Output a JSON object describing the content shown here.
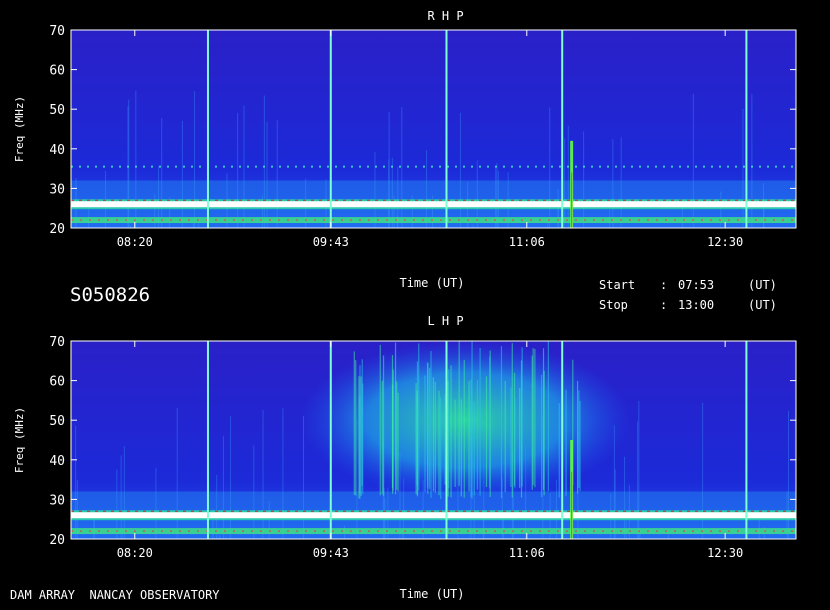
{
  "station_id": "S050826",
  "footer_label": "DAM ARRAY  NANCAY OBSERVATORY",
  "time_info": {
    "start_label": "Start",
    "stop_label": "Stop",
    "sep": ":",
    "start_time": "07:53",
    "stop_time": "13:00",
    "unit": "(UT)"
  },
  "colors": {
    "background": "#000000",
    "plot_bg": "#1a14c8",
    "time_marker": "#7fffd4"
  },
  "chart_data": [
    {
      "type": "heatmap",
      "title": "R H P",
      "xlabel": "Time (UT)",
      "ylabel": "Freq (MHz)",
      "x_range": [
        "07:53",
        "13:00"
      ],
      "ylim": [
        20,
        70
      ],
      "x_ticks": [
        "08:20",
        "09:43",
        "11:06",
        "12:30"
      ],
      "y_ticks": [
        20,
        30,
        40,
        50,
        60,
        70
      ],
      "time_markers": [
        "08:51",
        "09:43",
        "10:32",
        "11:21",
        "12:39"
      ],
      "features": [
        {
          "type": "band",
          "freq": 26,
          "intensity": "high"
        },
        {
          "type": "band",
          "freq": 22,
          "intensity": "medium"
        },
        {
          "type": "band",
          "freq": 35.5,
          "intensity": "low"
        },
        {
          "type": "burst",
          "time": "11:25",
          "freq_range": [
            20,
            42
          ]
        }
      ]
    },
    {
      "type": "heatmap",
      "title": "L H P",
      "xlabel": "Time (UT)",
      "ylabel": "Freq (MHz)",
      "x_range": [
        "07:53",
        "13:00"
      ],
      "ylim": [
        20,
        70
      ],
      "x_ticks": [
        "08:20",
        "09:43",
        "11:06",
        "12:30"
      ],
      "y_ticks": [
        20,
        30,
        40,
        50,
        60,
        70
      ],
      "time_markers": [
        "08:51",
        "09:43",
        "10:32",
        "11:21",
        "12:39"
      ],
      "features": [
        {
          "type": "band",
          "freq": 26,
          "intensity": "high"
        },
        {
          "type": "band",
          "freq": 22,
          "intensity": "medium"
        },
        {
          "type": "emission",
          "time_range": [
            "09:30",
            "11:50"
          ],
          "freq_range": [
            30,
            70
          ],
          "intensity": "medium"
        },
        {
          "type": "burst",
          "time": "11:25",
          "freq_range": [
            20,
            45
          ]
        }
      ]
    }
  ]
}
